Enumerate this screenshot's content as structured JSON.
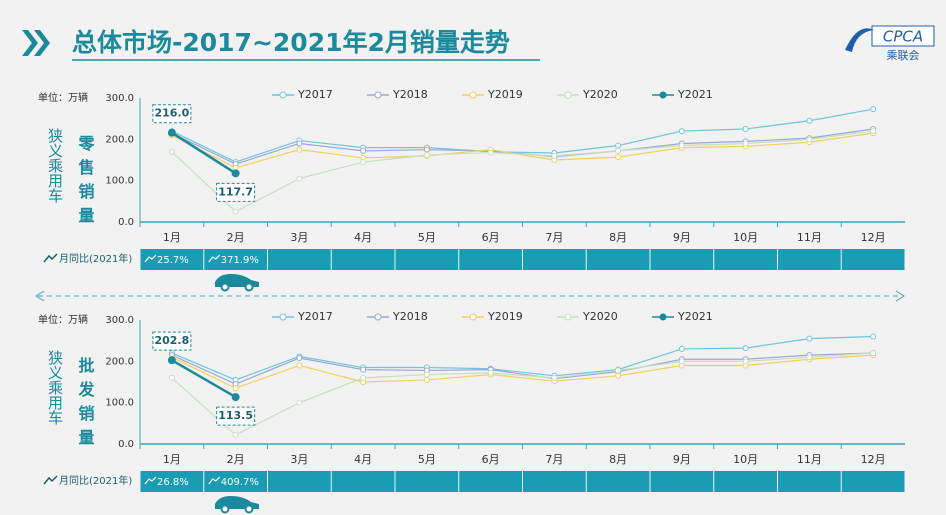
{
  "title": "总体市场-2017~2021年2月销量走势",
  "logo": {
    "name": "CPCA",
    "sub": "乘联会"
  },
  "chart_data": [
    {
      "type": "line",
      "unit": "单位：万辆",
      "ylabel": "狭义乘用车",
      "subtitle": "零售销量",
      "categories": [
        "1月",
        "2月",
        "3月",
        "4月",
        "5月",
        "6月",
        "7月",
        "8月",
        "9月",
        "10月",
        "11月",
        "12月"
      ],
      "ylim": [
        0,
        300
      ],
      "yticks": [
        {
          "value": 0,
          "label": "0.0"
        },
        {
          "value": 100,
          "label": "100.0"
        },
        {
          "value": 200,
          "label": "200.0"
        },
        {
          "value": 300,
          "label": "300.0"
        }
      ],
      "series": [
        {
          "name": "Y2017",
          "color": "#6cc5e0",
          "values": [
            220,
            145,
            197,
            180,
            180,
            170,
            167,
            185,
            220,
            225,
            245,
            273
          ]
        },
        {
          "name": "Y2018",
          "color": "#9aa6d8",
          "values": [
            215,
            140,
            190,
            172,
            175,
            172,
            158,
            172,
            190,
            195,
            203,
            225
          ]
        },
        {
          "name": "Y2019",
          "color": "#f2cf5b",
          "values": [
            210,
            131,
            175,
            155,
            160,
            175,
            150,
            157,
            180,
            183,
            193,
            215
          ]
        },
        {
          "name": "Y2020",
          "color": "#c3e0bf",
          "values": [
            170,
            25,
            105,
            145,
            162,
            168,
            160,
            172,
            185,
            190,
            200,
            220
          ]
        },
        {
          "name": "Y2021",
          "color": "#1a8a9c",
          "values": [
            216.0,
            117.7,
            null,
            null,
            null,
            null,
            null,
            null,
            null,
            null,
            null,
            null
          ],
          "value_labels": [
            "216.0",
            "117.7",
            null,
            null,
            null,
            null,
            null,
            null,
            null,
            null,
            null,
            null
          ]
        }
      ],
      "yoy_title": "月同比(2021年)",
      "yoy": [
        "25.7%",
        "371.9%"
      ]
    },
    {
      "type": "line",
      "unit": "单位：万辆",
      "ylabel": "狭义乘用车",
      "subtitle": "批发销量",
      "categories": [
        "1月",
        "2月",
        "3月",
        "4月",
        "5月",
        "6月",
        "7月",
        "8月",
        "9月",
        "10月",
        "11月",
        "12月"
      ],
      "ylim": [
        0,
        300
      ],
      "yticks": [
        {
          "value": 0,
          "label": "0.0"
        },
        {
          "value": 100,
          "label": "100.0"
        },
        {
          "value": 200,
          "label": "200.0"
        },
        {
          "value": 300,
          "label": "300.0"
        }
      ],
      "series": [
        {
          "name": "Y2017",
          "color": "#6cc5e0",
          "values": [
            220,
            155,
            212,
            185,
            185,
            182,
            165,
            180,
            230,
            232,
            255,
            260
          ]
        },
        {
          "name": "Y2018",
          "color": "#9aa6d8",
          "values": [
            215,
            145,
            208,
            180,
            178,
            180,
            158,
            175,
            205,
            205,
            215,
            220
          ]
        },
        {
          "name": "Y2019",
          "color": "#f2cf5b",
          "values": [
            210,
            135,
            190,
            150,
            155,
            168,
            152,
            165,
            190,
            190,
            205,
            215
          ]
        },
        {
          "name": "Y2020",
          "color": "#c3e0bf",
          "values": [
            160,
            22,
            100,
            160,
            168,
            172,
            160,
            178,
            200,
            200,
            210,
            220
          ]
        },
        {
          "name": "Y2021",
          "color": "#1a8a9c",
          "values": [
            202.8,
            113.5,
            null,
            null,
            null,
            null,
            null,
            null,
            null,
            null,
            null,
            null
          ],
          "value_labels": [
            "202.8",
            "113.5",
            null,
            null,
            null,
            null,
            null,
            null,
            null,
            null,
            null,
            null
          ]
        }
      ],
      "yoy_title": "月同比(2021年)",
      "yoy": [
        "26.8%",
        "409.7%"
      ]
    }
  ]
}
